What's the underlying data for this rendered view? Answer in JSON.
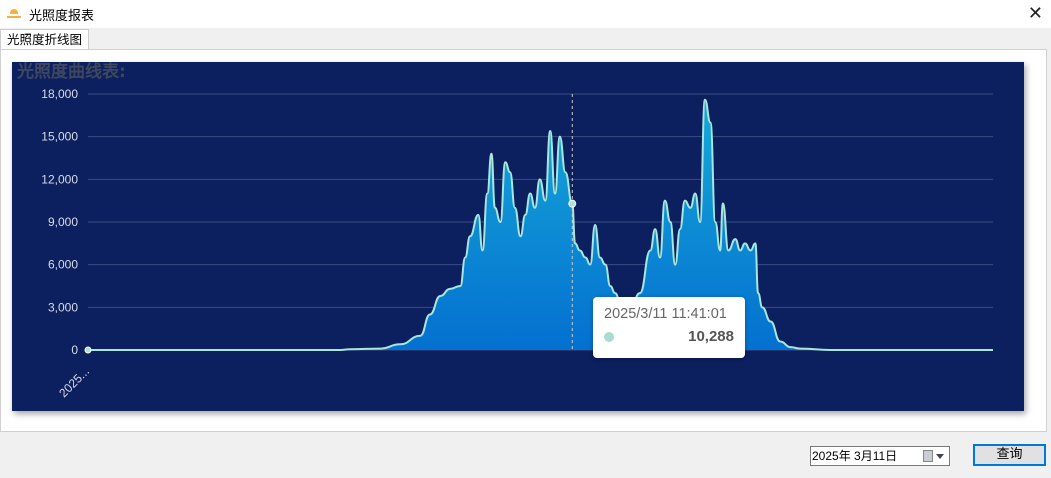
{
  "window": {
    "title": "光照度报表",
    "icon": "sun-icon",
    "close_icon": "close-icon",
    "close_glyph": "✕"
  },
  "tabs": [
    {
      "label": "光照度折线图",
      "active": true
    }
  ],
  "chart_title": "光照度曲线表:",
  "chart_data": {
    "type": "area",
    "title": "光照度曲线表:",
    "x_unit": "time of day (2025/3/11)",
    "x_tick_labels": [
      "2025..."
    ],
    "ylim": [
      0,
      18000
    ],
    "y_ticks": [
      "0",
      "3,000",
      "6,000",
      "9,000",
      "12,000",
      "15,000",
      "18,000"
    ],
    "grid": true,
    "colors": {
      "line": "#a8e6dc",
      "fill_top": "#16a9d8",
      "fill_bottom": "#0470d0",
      "background": "#0c1f5f"
    },
    "points": [
      [
        "00:00",
        0
      ],
      [
        "06:05",
        0
      ],
      [
        "06:19",
        50
      ],
      [
        "07:03",
        100
      ],
      [
        "07:32",
        400
      ],
      [
        "08:01",
        1000
      ],
      [
        "08:15",
        2500
      ],
      [
        "08:30",
        3800
      ],
      [
        "08:44",
        4300
      ],
      [
        "08:59",
        4500
      ],
      [
        "09:06",
        6500
      ],
      [
        "09:13",
        8000
      ],
      [
        "09:25",
        9500
      ],
      [
        "09:31",
        7000
      ],
      [
        "09:38",
        11000
      ],
      [
        "09:44",
        13800
      ],
      [
        "09:49",
        10000
      ],
      [
        "09:57",
        9000
      ],
      [
        "10:04",
        13200
      ],
      [
        "10:11",
        12500
      ],
      [
        "10:18",
        10000
      ],
      [
        "10:26",
        8000
      ],
      [
        "10:33",
        9500
      ],
      [
        "10:40",
        11000
      ],
      [
        "10:47",
        10000
      ],
      [
        "10:54",
        12000
      ],
      [
        "11:02",
        10500
      ],
      [
        "11:09",
        15400
      ],
      [
        "11:16",
        11000
      ],
      [
        "11:23",
        15000
      ],
      [
        "11:31",
        12500
      ],
      [
        "11:41",
        10288
      ],
      [
        "11:45",
        7500
      ],
      [
        "11:52",
        7000
      ],
      [
        "12:00",
        6500
      ],
      [
        "12:07",
        6000
      ],
      [
        "12:14",
        8800
      ],
      [
        "12:21",
        6500
      ],
      [
        "12:29",
        6000
      ],
      [
        "12:36",
        4500
      ],
      [
        "12:43",
        4000
      ],
      [
        "12:50",
        3500
      ],
      [
        "13:05",
        3000
      ],
      [
        "13:19",
        4000
      ],
      [
        "13:34",
        7000
      ],
      [
        "13:41",
        8500
      ],
      [
        "13:48",
        6500
      ],
      [
        "13:55",
        10500
      ],
      [
        "14:03",
        9000
      ],
      [
        "14:10",
        6000
      ],
      [
        "14:17",
        8500
      ],
      [
        "14:24",
        10500
      ],
      [
        "14:32",
        10000
      ],
      [
        "14:39",
        11000
      ],
      [
        "14:46",
        9000
      ],
      [
        "14:53",
        17600
      ],
      [
        "15:01",
        16000
      ],
      [
        "15:08",
        9000
      ],
      [
        "15:15",
        7000
      ],
      [
        "15:19",
        10300
      ],
      [
        "15:27",
        7000
      ],
      [
        "15:37",
        7800
      ],
      [
        "15:44",
        7000
      ],
      [
        "15:51",
        7500
      ],
      [
        "15:59",
        7000
      ],
      [
        "16:06",
        7500
      ],
      [
        "16:10",
        4000
      ],
      [
        "16:16",
        3000
      ],
      [
        "16:28",
        2000
      ],
      [
        "16:42",
        600
      ],
      [
        "16:57",
        200
      ],
      [
        "17:11",
        100
      ],
      [
        "17:54",
        0
      ],
      [
        "21:50",
        0
      ]
    ],
    "tooltip": {
      "time": "2025/3/11 11:41:01",
      "value": "10,288"
    }
  },
  "footer": {
    "date_value": "2025年  3月11日",
    "calendar_icon": "calendar-icon",
    "query_label": "查询"
  }
}
